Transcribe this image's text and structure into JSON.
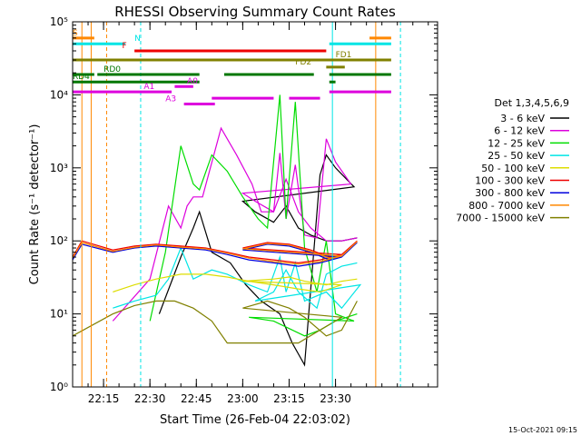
{
  "chart_data": {
    "type": "line",
    "title": "RHESSI Observing Summary Count Rates",
    "xlabel": "Start Time (26-Feb-04 22:03:02)",
    "ylabel": "Count Rate (s⁻¹ detector⁻¹)",
    "yscale": "log",
    "ylim": [
      1,
      100000
    ],
    "xlim_minutes": [
      22.05,
      23.63
    ],
    "x_ticks": [
      "22:15",
      "22:30",
      "22:45",
      "23:00",
      "23:15",
      "23:30"
    ],
    "y_ticks": [
      "10⁰",
      "10¹",
      "10²",
      "10³",
      "10⁴",
      "10⁵"
    ],
    "legend_title": "Det 1,3,4,5,6,9",
    "legend_placement": "right",
    "footer": "15-Oct-2021 09:15",
    "series": [
      {
        "name": "3 - 6 keV",
        "color": "#000000",
        "points": [
          [
            22.33,
            10
          ],
          [
            22.4,
            60
          ],
          [
            22.44,
            150
          ],
          [
            22.46,
            250
          ],
          [
            22.5,
            70
          ],
          [
            22.56,
            50
          ],
          [
            22.61,
            25
          ],
          [
            22.66,
            15
          ],
          [
            22.72,
            10
          ],
          [
            22.76,
            4
          ],
          [
            22.8,
            2
          ],
          [
            22.85,
            800
          ],
          [
            22.87,
            1500
          ],
          [
            22.9,
            1000
          ],
          [
            22.96,
            550
          ],
          [
            23.0,
            350
          ],
          [
            23.04,
            250
          ],
          [
            23.1,
            180
          ],
          [
            23.14,
            300
          ],
          [
            23.18,
            150
          ],
          [
            23.22,
            120
          ],
          [
            23.27,
            100
          ],
          [
            23.32,
            100
          ],
          [
            23.37,
            110
          ]
        ]
      },
      {
        "name": "6 - 12 keV",
        "color": "#dd00dd",
        "points": [
          [
            22.18,
            8
          ],
          [
            22.3,
            30
          ],
          [
            22.36,
            300
          ],
          [
            22.4,
            150
          ],
          [
            22.42,
            300
          ],
          [
            22.44,
            400
          ],
          [
            22.47,
            400
          ],
          [
            22.53,
            3500
          ],
          [
            22.58,
            1500
          ],
          [
            22.63,
            600
          ],
          [
            22.66,
            250
          ],
          [
            22.7,
            250
          ],
          [
            22.72,
            1600
          ],
          [
            22.74,
            200
          ],
          [
            22.77,
            1100
          ],
          [
            22.8,
            120
          ],
          [
            22.84,
            110
          ],
          [
            22.87,
            2500
          ],
          [
            22.9,
            1200
          ],
          [
            22.95,
            600
          ],
          [
            23.0,
            450
          ],
          [
            23.04,
            350
          ],
          [
            23.1,
            250
          ],
          [
            23.14,
            700
          ],
          [
            23.18,
            250
          ],
          [
            23.22,
            150
          ],
          [
            23.27,
            100
          ],
          [
            23.32,
            100
          ],
          [
            23.37,
            110
          ]
        ]
      },
      {
        "name": "12 - 25 keV",
        "color": "#00dd00",
        "points": [
          [
            22.3,
            8
          ],
          [
            22.35,
            70
          ],
          [
            22.4,
            2000
          ],
          [
            22.44,
            600
          ],
          [
            22.46,
            500
          ],
          [
            22.5,
            1500
          ],
          [
            22.55,
            900
          ],
          [
            22.6,
            400
          ],
          [
            22.65,
            200
          ],
          [
            22.68,
            150
          ],
          [
            22.72,
            10000
          ],
          [
            22.74,
            200
          ],
          [
            22.77,
            8000
          ],
          [
            22.8,
            80
          ],
          [
            22.84,
            20
          ],
          [
            22.87,
            100
          ],
          [
            22.9,
            10
          ],
          [
            22.96,
            8
          ],
          [
            23.02,
            9
          ],
          [
            23.1,
            8
          ],
          [
            23.2,
            5
          ],
          [
            23.25,
            6
          ],
          [
            23.3,
            8
          ],
          [
            23.37,
            10
          ]
        ]
      },
      {
        "name": "25 - 50 keV",
        "color": "#00e5e5",
        "points": [
          [
            22.18,
            12
          ],
          [
            22.25,
            15
          ],
          [
            22.32,
            18
          ],
          [
            22.36,
            30
          ],
          [
            22.4,
            80
          ],
          [
            22.44,
            30
          ],
          [
            22.5,
            40
          ],
          [
            22.55,
            35
          ],
          [
            22.62,
            25
          ],
          [
            22.68,
            20
          ],
          [
            22.72,
            60
          ],
          [
            22.74,
            20
          ],
          [
            22.77,
            50
          ],
          [
            22.8,
            15
          ],
          [
            22.87,
            20
          ],
          [
            22.92,
            12
          ],
          [
            22.98,
            25
          ],
          [
            23.04,
            15
          ],
          [
            23.1,
            20
          ],
          [
            23.14,
            40
          ],
          [
            23.18,
            20
          ],
          [
            23.24,
            12
          ],
          [
            23.27,
            35
          ],
          [
            23.32,
            45
          ],
          [
            23.37,
            50
          ]
        ]
      },
      {
        "name": "50 - 100 keV",
        "color": "#dddd00",
        "points": [
          [
            22.18,
            20
          ],
          [
            22.25,
            25
          ],
          [
            22.32,
            30
          ],
          [
            22.4,
            35
          ],
          [
            22.48,
            35
          ],
          [
            22.55,
            32
          ],
          [
            22.62,
            28
          ],
          [
            22.7,
            25
          ],
          [
            22.78,
            22
          ],
          [
            22.85,
            20
          ],
          [
            22.92,
            25
          ],
          [
            23.0,
            28
          ],
          [
            23.1,
            30
          ],
          [
            23.15,
            32
          ],
          [
            23.2,
            28
          ],
          [
            23.27,
            25
          ],
          [
            23.32,
            28
          ],
          [
            23.37,
            30
          ]
        ]
      },
      {
        "name": "100 - 300 keV",
        "color": "#ee0000",
        "points": [
          [
            22.05,
            60
          ],
          [
            22.08,
            100
          ],
          [
            22.18,
            75
          ],
          [
            22.25,
            85
          ],
          [
            22.32,
            90
          ],
          [
            22.4,
            85
          ],
          [
            22.48,
            80
          ],
          [
            22.55,
            70
          ],
          [
            22.62,
            60
          ],
          [
            22.7,
            55
          ],
          [
            22.78,
            50
          ],
          [
            22.85,
            55
          ],
          [
            22.92,
            65
          ],
          [
            23.0,
            80
          ],
          [
            23.08,
            95
          ],
          [
            23.15,
            90
          ],
          [
            23.22,
            75
          ],
          [
            23.28,
            60
          ],
          [
            23.32,
            65
          ],
          [
            23.37,
            100
          ]
        ]
      },
      {
        "name": "300 - 800 keV",
        "color": "#0000dd",
        "points": [
          [
            22.05,
            55
          ],
          [
            22.08,
            90
          ],
          [
            22.18,
            70
          ],
          [
            22.25,
            80
          ],
          [
            22.32,
            85
          ],
          [
            22.4,
            80
          ],
          [
            22.48,
            75
          ],
          [
            22.55,
            65
          ],
          [
            22.62,
            55
          ],
          [
            22.7,
            50
          ],
          [
            22.78,
            45
          ],
          [
            22.85,
            50
          ],
          [
            22.92,
            60
          ],
          [
            23.0,
            75
          ],
          [
            23.08,
            90
          ],
          [
            23.15,
            85
          ],
          [
            23.22,
            70
          ],
          [
            23.28,
            55
          ],
          [
            23.32,
            60
          ],
          [
            23.37,
            95
          ]
        ]
      },
      {
        "name": "800 - 7000 keV",
        "color": "#ff8800",
        "points": [
          [
            22.05,
            58
          ],
          [
            22.08,
            95
          ],
          [
            22.18,
            72
          ],
          [
            22.25,
            82
          ],
          [
            22.32,
            88
          ],
          [
            22.4,
            82
          ],
          [
            22.48,
            78
          ],
          [
            22.55,
            68
          ],
          [
            22.62,
            58
          ],
          [
            22.7,
            52
          ],
          [
            22.78,
            48
          ],
          [
            22.85,
            52
          ],
          [
            22.92,
            62
          ],
          [
            23.0,
            78
          ],
          [
            23.08,
            92
          ],
          [
            23.15,
            88
          ],
          [
            23.22,
            72
          ],
          [
            23.28,
            58
          ],
          [
            23.32,
            62
          ],
          [
            23.37,
            98
          ]
        ]
      },
      {
        "name": "7000 - 15000 keV",
        "color": "#808000",
        "points": [
          [
            22.05,
            5
          ],
          [
            22.18,
            10
          ],
          [
            22.25,
            13
          ],
          [
            22.32,
            15
          ],
          [
            22.38,
            15
          ],
          [
            22.44,
            12
          ],
          [
            22.5,
            8
          ],
          [
            22.55,
            4
          ],
          [
            22.62,
            4
          ],
          [
            22.7,
            4
          ],
          [
            22.78,
            4
          ],
          [
            22.85,
            6
          ],
          [
            22.92,
            9
          ],
          [
            23.0,
            12
          ],
          [
            23.08,
            15
          ],
          [
            23.15,
            12
          ],
          [
            23.2,
            9
          ],
          [
            23.27,
            5
          ],
          [
            23.32,
            6
          ],
          [
            23.37,
            15
          ]
        ]
      }
    ],
    "segments": [
      {
        "label": "S",
        "color": "#ff8800",
        "y": 60000,
        "x1": 22.05,
        "x2": 22.12,
        "label_x": 22.05
      },
      {
        "label": "",
        "color": "#ff8800",
        "y": 60000,
        "x1": 23.41,
        "x2": 23.48,
        "label_x": 23.41
      },
      {
        "label": "N",
        "color": "#00e5e5",
        "y": 50000,
        "x1": 22.05,
        "x2": 22.22,
        "label_x": 22.25
      },
      {
        "label": "",
        "color": "#00e5e5",
        "y": 50000,
        "x1": 23.28,
        "x2": 23.48,
        "label_x": 23.28
      },
      {
        "label": "F",
        "color": "#ee0000",
        "y": 40000,
        "x1": 22.25,
        "x2": 23.27,
        "label_x": 22.21
      },
      {
        "label": "FD1",
        "color": "#808000",
        "y": 30000,
        "x1": 22.05,
        "x2": 23.48,
        "label_x": 22.9
      },
      {
        "label": "FD2",
        "color": "#808000",
        "y": 24000,
        "x1": 22.87,
        "x2": 22.93,
        "label_x": 22.77
      },
      {
        "label": "RD0",
        "color": "#007700",
        "y": 19000,
        "x1": 22.05,
        "x2": 22.12,
        "label_x": 22.15
      },
      {
        "label": "",
        "color": "#007700",
        "y": 19000,
        "x1": 22.13,
        "x2": 22.46,
        "label_x": 22.13
      },
      {
        "label": "",
        "color": "#007700",
        "y": 19000,
        "x1": 22.54,
        "x2": 22.83,
        "label_x": 22.54
      },
      {
        "label": "",
        "color": "#007700",
        "y": 19000,
        "x1": 22.88,
        "x2": 23.48,
        "label_x": 22.88
      },
      {
        "label": "RD4",
        "color": "#007700",
        "y": 15000,
        "x1": 22.05,
        "x2": 22.46,
        "label_x": 22.05
      },
      {
        "label": "",
        "color": "#007700",
        "y": 15000,
        "x1": 22.88,
        "x2": 23.3,
        "label_x": 22.88
      },
      {
        "label": "A0",
        "color": "#dd00dd",
        "y": 13000,
        "x1": 22.38,
        "x2": 22.44,
        "label_x": 22.42
      },
      {
        "label": "A1",
        "color": "#dd00dd",
        "y": 11000,
        "x1": 22.05,
        "x2": 22.37,
        "label_x": 22.28
      },
      {
        "label": "",
        "color": "#dd00dd",
        "y": 11000,
        "x1": 22.88,
        "x2": 23.48,
        "label_x": 22.88
      },
      {
        "label": "",
        "color": "#dd00dd",
        "y": 9000,
        "x1": 22.5,
        "x2": 22.7,
        "label_x": 22.5
      },
      {
        "label": "",
        "color": "#dd00dd",
        "y": 9000,
        "x1": 22.75,
        "x2": 22.85,
        "label_x": 22.75
      },
      {
        "label": "A3",
        "color": "#dd00dd",
        "y": 7500,
        "x1": 22.41,
        "x2": 22.51,
        "label_x": 22.35
      }
    ],
    "vlines": [
      {
        "x": 22.08,
        "color": "#ff8800",
        "dash": false
      },
      {
        "x": 22.11,
        "color": "#ff8800",
        "dash": false
      },
      {
        "x": 22.16,
        "color": "#ff8800",
        "dash": true
      },
      {
        "x": 22.27,
        "color": "#00e5e5",
        "dash": true
      },
      {
        "x": 23.29,
        "color": "#00e5e5",
        "dash": false
      },
      {
        "x": 23.43,
        "color": "#ff8800",
        "dash": false
      },
      {
        "x": 23.51,
        "color": "#00e5e5",
        "dash": true
      }
    ]
  }
}
